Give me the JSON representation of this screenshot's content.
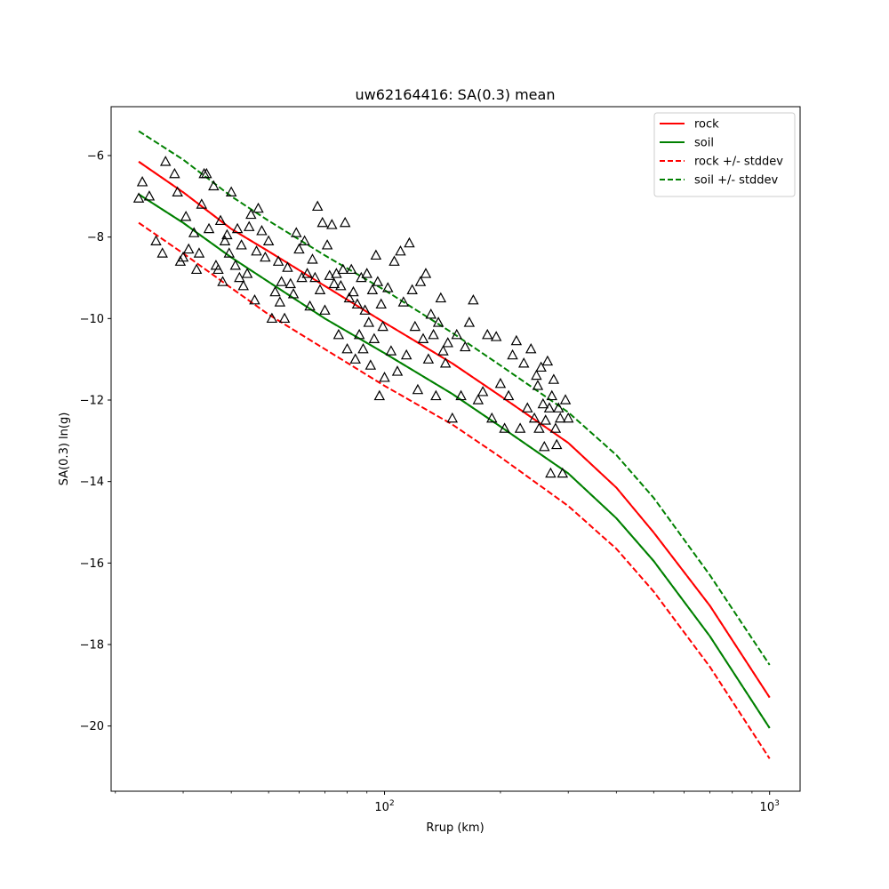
{
  "chart_data": {
    "type": "scatter",
    "title": "uw62164416: SA(0.3) mean",
    "xlabel": "Rrup (km)",
    "ylabel": "SA(0.3) ln(g)",
    "xscale": "log",
    "xlim": [
      19.5,
      1200
    ],
    "ylim": [
      -21.6,
      -4.8
    ],
    "x_tick_labels": [
      {
        "value": 100,
        "base": "10",
        "exp": "2"
      },
      {
        "value": 1000,
        "base": "10",
        "exp": "3"
      }
    ],
    "y_ticks": [
      -6,
      -8,
      -10,
      -12,
      -14,
      -16,
      -18,
      -20
    ],
    "y_tick_labels": [
      "−6",
      "−8",
      "−10",
      "−12",
      "−14",
      "−16",
      "−18",
      "−20"
    ],
    "grid": false,
    "legend_position": "top-right",
    "colors": {
      "rock": "#ff0000",
      "soil": "#008000",
      "observed": "#000000"
    },
    "series": [
      {
        "name": "rock",
        "style": "solid",
        "color": "#ff0000",
        "x": [
          23,
          30,
          40,
          50,
          70,
          100,
          150,
          200,
          300,
          400,
          500,
          700,
          1000
        ],
        "y": [
          -6.15,
          -6.9,
          -7.8,
          -8.35,
          -9.2,
          -10.1,
          -11.1,
          -11.9,
          -13.05,
          -14.15,
          -15.25,
          -17.05,
          -19.3
        ]
      },
      {
        "name": "soil",
        "style": "solid",
        "color": "#008000",
        "x": [
          23,
          30,
          40,
          50,
          70,
          100,
          150,
          200,
          300,
          400,
          500,
          700,
          1000
        ],
        "y": [
          -6.95,
          -7.65,
          -8.5,
          -9.1,
          -10.0,
          -10.85,
          -11.85,
          -12.65,
          -13.8,
          -14.9,
          -15.95,
          -17.8,
          -20.05
        ]
      },
      {
        "name": "rock +/- stddev",
        "style": "dashed",
        "color": "#ff0000",
        "x": [
          23,
          30,
          40,
          50,
          70,
          100,
          150,
          200,
          300,
          400,
          500,
          700,
          1000
        ],
        "y": [
          -7.65,
          -8.4,
          -9.25,
          -9.9,
          -10.75,
          -11.65,
          -12.6,
          -13.4,
          -14.6,
          -15.65,
          -16.7,
          -18.55,
          -20.8
        ]
      },
      {
        "name": "soil +/- stddev",
        "style": "dashed",
        "color": "#008000",
        "x": [
          23,
          30,
          40,
          50,
          70,
          100,
          150,
          200,
          300,
          400,
          500,
          700,
          1000
        ],
        "y": [
          -5.4,
          -6.1,
          -7.0,
          -7.6,
          -8.45,
          -9.3,
          -10.35,
          -11.15,
          -12.3,
          -13.35,
          -14.4,
          -16.3,
          -18.5
        ]
      },
      {
        "name": "",
        "style": "dashed",
        "color": "#ff0000",
        "legend": false,
        "x": [
          23,
          30,
          40,
          50,
          70,
          100,
          150,
          200,
          300,
          400,
          500,
          700,
          1000
        ],
        "y": [
          -6.15,
          -6.9,
          -7.8,
          -8.35,
          -9.2,
          -10.1,
          -11.1,
          -11.9,
          -13.05,
          -14.15,
          -15.25,
          -17.05,
          -19.3
        ]
      },
      {
        "name": "",
        "style": "dashed",
        "color": "#008000",
        "legend": false,
        "x": [
          23,
          30,
          40,
          50,
          70,
          100,
          150,
          200,
          300,
          400,
          500,
          700,
          1000
        ],
        "y": [
          -6.95,
          -7.65,
          -8.5,
          -9.1,
          -10.0,
          -10.85,
          -11.85,
          -12.65,
          -13.8,
          -14.9,
          -15.95,
          -17.8,
          -20.05
        ]
      }
    ],
    "observations": {
      "marker": "open-triangle",
      "points": [
        [
          23,
          -7.05
        ],
        [
          23.5,
          -6.65
        ],
        [
          24.5,
          -7.0
        ],
        [
          25.5,
          -8.1
        ],
        [
          26.5,
          -8.4
        ],
        [
          27,
          -6.15
        ],
        [
          28.5,
          -6.45
        ],
        [
          29,
          -6.9
        ],
        [
          29.5,
          -8.6
        ],
        [
          30,
          -8.5
        ],
        [
          30.5,
          -7.5
        ],
        [
          31,
          -8.3
        ],
        [
          32,
          -7.9
        ],
        [
          32.5,
          -8.8
        ],
        [
          33,
          -8.4
        ],
        [
          33.5,
          -7.2
        ],
        [
          34,
          -6.45
        ],
        [
          34.5,
          -6.45
        ],
        [
          35,
          -7.8
        ],
        [
          36,
          -6.75
        ],
        [
          36.5,
          -8.7
        ],
        [
          37,
          -8.8
        ],
        [
          37.5,
          -7.6
        ],
        [
          38,
          -9.1
        ],
        [
          38.5,
          -8.1
        ],
        [
          39,
          -7.95
        ],
        [
          39.5,
          -8.4
        ],
        [
          40,
          -6.9
        ],
        [
          41,
          -8.7
        ],
        [
          41.5,
          -7.8
        ],
        [
          42,
          -9.0
        ],
        [
          42.5,
          -8.2
        ],
        [
          43,
          -9.2
        ],
        [
          44,
          -8.9
        ],
        [
          44.5,
          -7.75
        ],
        [
          45,
          -7.45
        ],
        [
          46,
          -9.55
        ],
        [
          46.5,
          -8.35
        ],
        [
          47,
          -7.3
        ],
        [
          48,
          -7.85
        ],
        [
          49,
          -8.5
        ],
        [
          50,
          -8.1
        ],
        [
          51,
          -10.0
        ],
        [
          52,
          -9.35
        ],
        [
          53,
          -8.6
        ],
        [
          53.5,
          -9.6
        ],
        [
          54,
          -9.1
        ],
        [
          55,
          -10.0
        ],
        [
          56,
          -8.75
        ],
        [
          57,
          -9.15
        ],
        [
          58,
          -9.4
        ],
        [
          59,
          -7.9
        ],
        [
          60,
          -8.3
        ],
        [
          61,
          -9.0
        ],
        [
          62,
          -8.1
        ],
        [
          63,
          -8.9
        ],
        [
          64,
          -9.7
        ],
        [
          65,
          -8.55
        ],
        [
          66,
          -9.0
        ],
        [
          67,
          -7.25
        ],
        [
          68,
          -9.3
        ],
        [
          69,
          -7.65
        ],
        [
          70,
          -9.8
        ],
        [
          71,
          -8.2
        ],
        [
          72,
          -8.95
        ],
        [
          73,
          -7.7
        ],
        [
          74,
          -9.15
        ],
        [
          75,
          -8.9
        ],
        [
          76,
          -10.4
        ],
        [
          77,
          -9.2
        ],
        [
          78,
          -8.8
        ],
        [
          79,
          -7.65
        ],
        [
          80,
          -10.75
        ],
        [
          81,
          -9.5
        ],
        [
          82,
          -8.8
        ],
        [
          83,
          -9.35
        ],
        [
          84,
          -11.0
        ],
        [
          85,
          -9.65
        ],
        [
          86,
          -10.4
        ],
        [
          87,
          -9.0
        ],
        [
          88,
          -10.75
        ],
        [
          89,
          -9.8
        ],
        [
          90,
          -8.9
        ],
        [
          91,
          -10.1
        ],
        [
          92,
          -11.15
        ],
        [
          93,
          -9.3
        ],
        [
          94,
          -10.5
        ],
        [
          95,
          -8.45
        ],
        [
          96,
          -9.1
        ],
        [
          97,
          -11.9
        ],
        [
          98,
          -9.65
        ],
        [
          99,
          -10.2
        ],
        [
          100,
          -11.45
        ],
        [
          102,
          -9.25
        ],
        [
          104,
          -10.8
        ],
        [
          106,
          -8.6
        ],
        [
          108,
          -11.3
        ],
        [
          110,
          -8.35
        ],
        [
          112,
          -9.6
        ],
        [
          114,
          -10.9
        ],
        [
          116,
          -8.15
        ],
        [
          118,
          -9.3
        ],
        [
          120,
          -10.2
        ],
        [
          122,
          -11.75
        ],
        [
          124,
          -9.1
        ],
        [
          126,
          -10.5
        ],
        [
          128,
          -8.9
        ],
        [
          130,
          -11.0
        ],
        [
          132,
          -9.9
        ],
        [
          134,
          -10.4
        ],
        [
          136,
          -11.9
        ],
        [
          138,
          -10.1
        ],
        [
          140,
          -9.5
        ],
        [
          142,
          -10.8
        ],
        [
          144,
          -11.1
        ],
        [
          146,
          -10.6
        ],
        [
          150,
          -12.45
        ],
        [
          154,
          -10.4
        ],
        [
          158,
          -11.9
        ],
        [
          162,
          -10.7
        ],
        [
          166,
          -10.1
        ],
        [
          170,
          -9.55
        ],
        [
          175,
          -12.0
        ],
        [
          180,
          -11.8
        ],
        [
          185,
          -10.4
        ],
        [
          190,
          -12.45
        ],
        [
          195,
          -10.45
        ],
        [
          200,
          -11.6
        ],
        [
          205,
          -12.7
        ],
        [
          210,
          -11.9
        ],
        [
          215,
          -10.9
        ],
        [
          220,
          -10.55
        ],
        [
          225,
          -12.7
        ],
        [
          230,
          -11.1
        ],
        [
          235,
          -12.2
        ],
        [
          240,
          -10.75
        ],
        [
          245,
          -12.45
        ],
        [
          248,
          -11.4
        ],
        [
          250,
          -11.65
        ],
        [
          252,
          -12.7
        ],
        [
          255,
          -11.2
        ],
        [
          258,
          -12.1
        ],
        [
          260,
          -13.15
        ],
        [
          262,
          -12.5
        ],
        [
          265,
          -11.05
        ],
        [
          268,
          -12.2
        ],
        [
          270,
          -13.8
        ],
        [
          272,
          -11.9
        ],
        [
          275,
          -11.5
        ],
        [
          278,
          -12.7
        ],
        [
          280,
          -13.1
        ],
        [
          283,
          -12.2
        ],
        [
          286,
          -12.45
        ],
        [
          290,
          -13.8
        ],
        [
          295,
          -12.0
        ],
        [
          300,
          -12.45
        ]
      ]
    }
  }
}
